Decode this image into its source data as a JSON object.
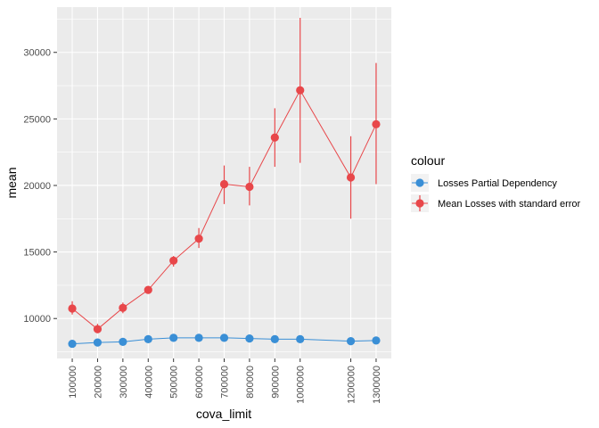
{
  "chart_data": {
    "type": "line",
    "title": "",
    "xlabel": "cova_limit",
    "ylabel": "mean",
    "xlim": [
      40000,
      1360000
    ],
    "ylim": [
      7000,
      33400
    ],
    "x_ticks": [
      100000,
      200000,
      300000,
      400000,
      500000,
      600000,
      700000,
      800000,
      900000,
      1000000,
      1200000,
      1300000
    ],
    "y_ticks": [
      10000,
      15000,
      20000,
      25000,
      30000
    ],
    "grid": true,
    "legend": {
      "title": "colour",
      "position": "right"
    },
    "series": [
      {
        "name": "Losses Partial Dependency",
        "color": "#3a8fd6",
        "x": [
          100000,
          200000,
          300000,
          400000,
          500000,
          600000,
          700000,
          800000,
          900000,
          1000000,
          1200000,
          1300000
        ],
        "values": [
          8100,
          8200,
          8250,
          8450,
          8550,
          8550,
          8550,
          8500,
          8450,
          8450,
          8300,
          8350
        ]
      },
      {
        "name": "Mean Losses with standard error",
        "color": "#e8474a",
        "x": [
          100000,
          200000,
          300000,
          400000,
          500000,
          600000,
          700000,
          800000,
          900000,
          1000000,
          1200000,
          1300000
        ],
        "values": [
          10750,
          9200,
          10800,
          12150,
          14350,
          16000,
          20100,
          19900,
          23600,
          27150,
          20600,
          24600
        ],
        "error_low": [
          10300,
          8900,
          10400,
          11900,
          13900,
          15300,
          18600,
          18500,
          21400,
          21700,
          17500,
          20100
        ],
        "error_high": [
          11300,
          9600,
          11200,
          12400,
          14700,
          16800,
          21500,
          21400,
          25800,
          32600,
          23700,
          29200
        ]
      }
    ]
  }
}
